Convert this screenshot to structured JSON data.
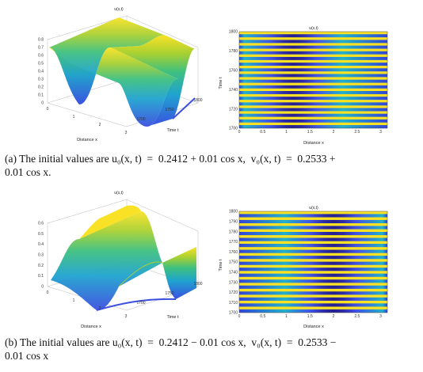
{
  "figures": [
    {
      "id": "a",
      "surface": {
        "title": "u(x,t)",
        "xlabel": "Distance x",
        "ylabel": "Time t",
        "zticks": [
          "0",
          "0.1",
          "0.2",
          "0.3",
          "0.4",
          "0.5",
          "0.6",
          "0.7",
          "0.8"
        ],
        "xticks": [
          "0",
          "1",
          "2",
          "3"
        ],
        "tticks": [
          "1700",
          "1750",
          "1800"
        ]
      },
      "heatmap": {
        "title": "u(x,t)",
        "xlabel": "Distance x",
        "ylabel": "Time t",
        "xticks": [
          "0",
          "0.5",
          "1",
          "1.5",
          "2",
          "2.5",
          "3"
        ],
        "yticks": [
          "1700",
          "1720",
          "1740",
          "1760",
          "1780",
          "1800"
        ],
        "dark_band_x": 1.15,
        "stripes": 17
      },
      "caption": {
        "label": "(a)",
        "text_line1": "The initial values are u₀(x, t)  =  0.2412 + 0.01 cos x,  v₀(x, t)  =  0.2533 +",
        "text_line2": "0.01 cos x."
      }
    },
    {
      "id": "b",
      "surface": {
        "title": "u(x,t)",
        "xlabel": "Distance x",
        "ylabel": "Time t",
        "zticks": [
          "0",
          "0.1",
          "0.2",
          "0.3",
          "0.4",
          "0.5",
          "0.6"
        ],
        "xticks": [
          "0",
          "1",
          "2",
          "3"
        ],
        "tticks": [
          "1700",
          "1750",
          "1800"
        ]
      },
      "heatmap": {
        "title": "u(x,t)",
        "xlabel": "Distance x",
        "ylabel": "Time t",
        "xticks": [
          "0",
          "0.5",
          "1",
          "1.5",
          "2",
          "2.5",
          "3"
        ],
        "yticks": [
          "1700",
          "1710",
          "1720",
          "1730",
          "1740",
          "1750",
          "1760",
          "1770",
          "1780",
          "1790",
          "1800"
        ],
        "dark_band_x": 2.0,
        "stripes": 17
      },
      "caption": {
        "label": "(b)",
        "text_line1": "The initial values are u₀(x, t)  =  0.2412 − 0.01 cos x,  v₀(x, t)  =  0.2533 −",
        "text_line2": "0.01 cos x"
      }
    }
  ],
  "colors": {
    "yellow": "#f9e225",
    "cyan": "#21b5c7",
    "blue": "#3b4fe0",
    "navy": "#2a2396"
  }
}
